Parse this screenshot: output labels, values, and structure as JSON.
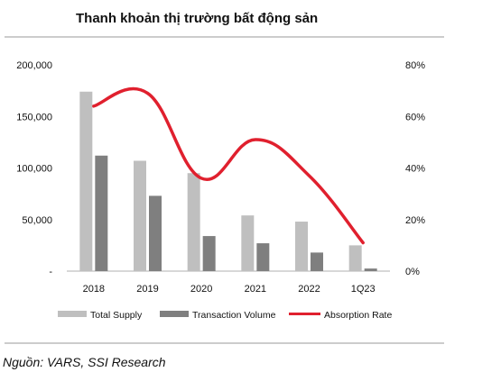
{
  "chart_data": {
    "type": "bar",
    "title": "Thanh khoản thị trường bất động sản",
    "categories": [
      "2018",
      "2019",
      "2020",
      "2021",
      "2022",
      "1Q23"
    ],
    "series": [
      {
        "name": "Total Supply",
        "type": "bar",
        "axis": "left",
        "color": "#bfbfbf",
        "values": [
          174000,
          107000,
          95000,
          54000,
          48000,
          25000
        ]
      },
      {
        "name": "Transaction Volume",
        "type": "bar",
        "axis": "left",
        "color": "#7f7f7f",
        "values": [
          112000,
          73000,
          34000,
          27000,
          18000,
          2500
        ]
      },
      {
        "name": "Absorption Rate",
        "type": "line",
        "axis": "right",
        "color": "#e0202e",
        "values": [
          0.64,
          0.69,
          0.36,
          0.51,
          0.37,
          0.11
        ]
      }
    ],
    "y_left": {
      "ylim": [
        0,
        200000
      ],
      "ticks": [
        "-",
        "50,000",
        "100,000",
        "150,000",
        "200,000"
      ]
    },
    "y_right": {
      "ylim": [
        0,
        0.8
      ],
      "ticks": [
        "0%",
        "20%",
        "40%",
        "60%",
        "80%"
      ]
    },
    "legend": "bottom",
    "grid": false
  },
  "source": "Nguồn: VARS, SSI Research"
}
